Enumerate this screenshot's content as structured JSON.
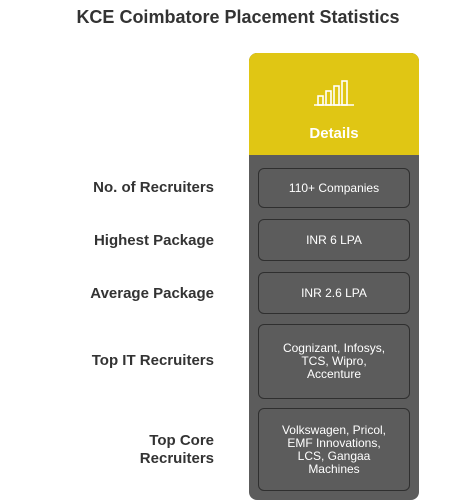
{
  "title": "KCE Coimbatore Placement Statistics",
  "header": {
    "icon": "bar-chart-icon",
    "label": "Details",
    "color": "#e0c614"
  },
  "rows": [
    {
      "label": "No. of Recruiters",
      "value": "110+ Companies"
    },
    {
      "label": "Highest Package",
      "value": "INR 6 LPA"
    },
    {
      "label": "Average Package",
      "value": "INR 2.6 LPA"
    },
    {
      "label": "Top IT Recruiters",
      "value": "Cognizant, Infosys,\nTCS, Wipro,\nAccenture"
    },
    {
      "label": "Top Core\nRecruiters",
      "value": "Volkswagen, Pricol,\nEMF Innovations,\nLCS, Gangaa\nMachines"
    }
  ]
}
